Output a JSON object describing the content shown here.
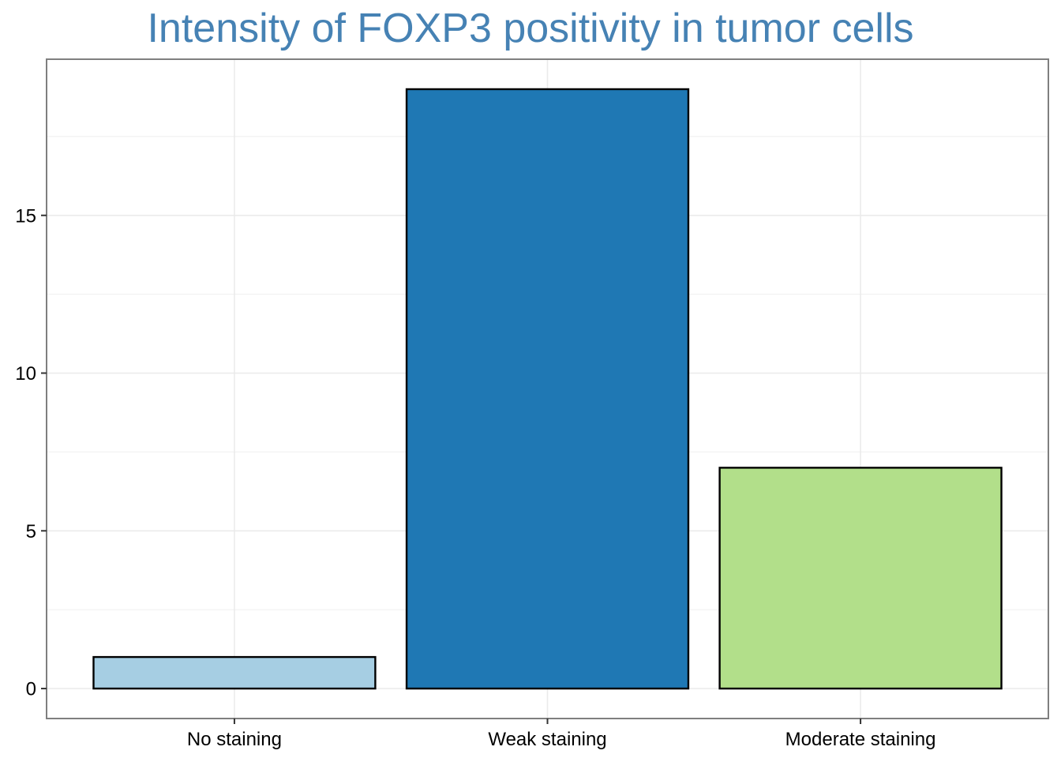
{
  "chart_data": {
    "type": "bar",
    "title": "Intensity of FOXP3 positivity in tumor cells",
    "xlabel": "",
    "ylabel": "",
    "categories": [
      "No staining",
      "Weak staining",
      "Moderate staining"
    ],
    "values": [
      1,
      19,
      7
    ],
    "colors": [
      "#a6cee3",
      "#1f78b4",
      "#b2df8a"
    ],
    "title_color": "#4682b4",
    "yticks": [
      0,
      5,
      10,
      15
    ],
    "ylim": [
      -0.95,
      19.95
    ],
    "grid": true,
    "legend": "none"
  }
}
